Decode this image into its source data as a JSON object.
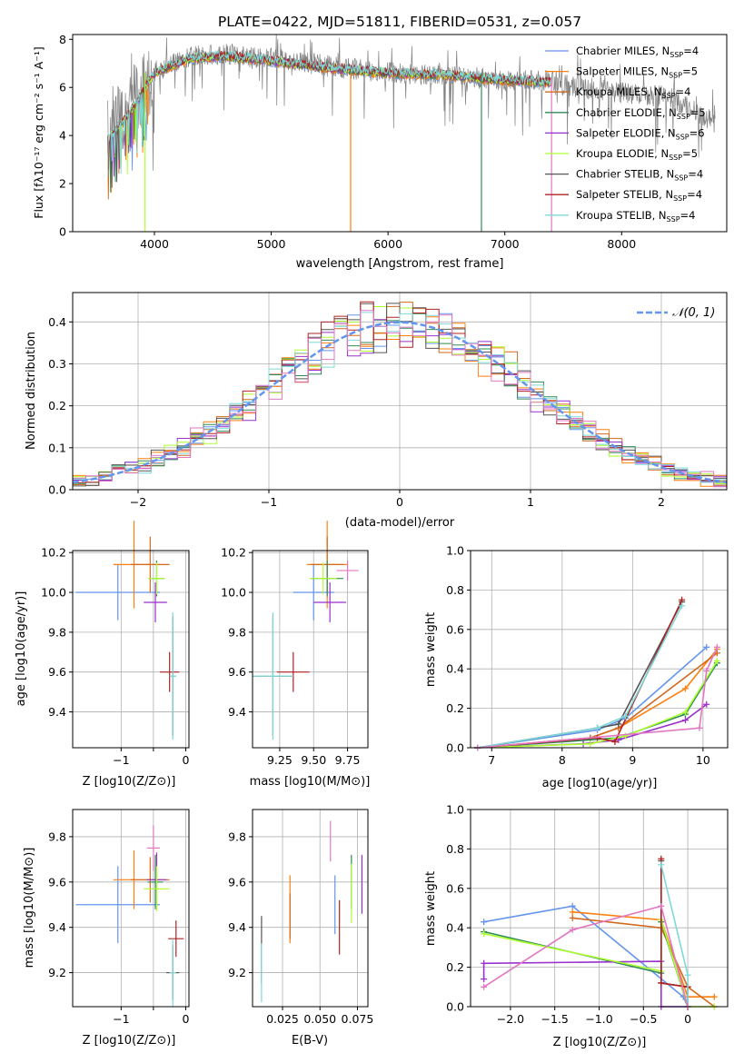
{
  "colors": {
    "chabrier_miles": "#6495ed",
    "salpeter_miles": "#ff7f0e",
    "kroupa_miles": "#d2691e",
    "chabrier_elodie": "#2e8b57",
    "salpeter_elodie": "#9932cc",
    "kroupa_elodie": "#adff2f",
    "chabrier_stelib": "#555555",
    "salpeter_stelib": "#b22222",
    "kroupa_stelib": "#7fd8d8",
    "data": "#808080",
    "extra": "#e377c2"
  },
  "chart_data": [
    {
      "type": "line",
      "title": "PLATE=0422, MJD=51811, FIBERID=0531, z=0.057",
      "xlabel": "wavelength [Angstrom, rest frame]",
      "ylabel": "Flux [fλ10⁻¹⁷ erg cm⁻² s⁻¹ A⁻¹]",
      "xlim": [
        3300,
        8900
      ],
      "ylim": [
        0,
        8.2
      ],
      "xticks": [
        4000,
        5000,
        6000,
        7000,
        8000
      ],
      "yticks": [
        0,
        2,
        4,
        6,
        8
      ],
      "grid": false,
      "legend_position": "top-right",
      "legend": [
        {
          "main": "Chabrier MILES, N",
          "sub": "SSP",
          "tail": "=4",
          "color": "#6495ed"
        },
        {
          "main": "Salpeter MILES, N",
          "sub": "SSP",
          "tail": "=5",
          "color": "#ff7f0e"
        },
        {
          "main": "Kroupa MILES, N",
          "sub": "SSP",
          "tail": "=4",
          "color": "#d2691e"
        },
        {
          "main": "Chabrier ELODIE, N",
          "sub": "SSP",
          "tail": "=5",
          "color": "#2e8b57"
        },
        {
          "main": "Salpeter ELODIE, N",
          "sub": "SSP",
          "tail": "=6",
          "color": "#9932cc"
        },
        {
          "main": "Kroupa ELODIE, N",
          "sub": "SSP",
          "tail": "=5",
          "color": "#adff2f"
        },
        {
          "main": "Chabrier STELIB, N",
          "sub": "SSP",
          "tail": "=4",
          "color": "#555555"
        },
        {
          "main": "Salpeter STELIB, N",
          "sub": "SSP",
          "tail": "=4",
          "color": "#b22222"
        },
        {
          "main": "Kroupa STELIB, N",
          "sub": "SSP",
          "tail": "=4",
          "color": "#7fd8d8"
        }
      ],
      "data_envelope": {
        "x": [
          3600,
          3800,
          4000,
          4300,
          4600,
          5000,
          5500,
          6000,
          6500,
          7000,
          7400,
          7500,
          7800,
          8000,
          8400,
          8800
        ],
        "y": [
          4.2,
          5.4,
          6.6,
          7.3,
          7.4,
          7.2,
          6.9,
          6.6,
          6.5,
          6.3,
          6.3,
          6.1,
          5.9,
          5.8,
          5.6,
          4.5
        ]
      },
      "model_envelope": {
        "x": [
          3600,
          3800,
          4000,
          4300,
          4600,
          5000,
          5500,
          6000,
          6500,
          7000,
          7400
        ],
        "y": [
          3.8,
          5.0,
          6.6,
          7.2,
          7.3,
          7.1,
          6.8,
          6.6,
          6.5,
          6.3,
          6.2
        ]
      }
    },
    {
      "type": "line",
      "xlabel": "(data-model)/error",
      "ylabel": "Normed distribution",
      "xlim": [
        -2.5,
        2.5
      ],
      "ylim": [
        0,
        0.47
      ],
      "xticks": [
        -2,
        -1,
        0,
        1,
        2
      ],
      "yticks": [
        0.0,
        0.1,
        0.2,
        0.3,
        0.4
      ],
      "grid": true,
      "legend_position": "top-right",
      "legend_label": "𝒩(0, 1)",
      "normal_curve": {
        "mean": 0,
        "sigma": 1
      },
      "histogram_bins": {
        "start": -2.5,
        "width": 0.1,
        "count": 50
      }
    },
    {
      "type": "scatter",
      "xlabel": "Z [log10(Z/Z⊙)]",
      "ylabel": "age  [log10(age/yr)]",
      "xlim": [
        -1.75,
        0.05
      ],
      "ylim": [
        9.22,
        10.21
      ],
      "xticks": [
        -1,
        -0.5,
        0
      ],
      "xtick_labels": [
        "−1",
        "",
        "0"
      ],
      "yticks": [
        9.4,
        9.6,
        9.8,
        10.0,
        10.2
      ],
      "grid": true,
      "points": [
        {
          "name": "Chabrier MILES",
          "x": -1.05,
          "y": 10.0,
          "xerr": 0.65,
          "yerr": 0.14
        },
        {
          "name": "Salpeter MILES",
          "x": -0.8,
          "y": 10.14,
          "xerr": 0.32,
          "yerr": 0.22
        },
        {
          "name": "Kroupa MILES",
          "x": -0.55,
          "y": 10.14,
          "xerr": 0.3,
          "yerr": 0.14
        },
        {
          "name": "Chabrier ELODIE",
          "x": -0.45,
          "y": 10.07,
          "xerr": 0.12,
          "yerr": 0.09
        },
        {
          "name": "Salpeter ELODIE",
          "x": -0.47,
          "y": 9.95,
          "xerr": 0.18,
          "yerr": 0.1
        },
        {
          "name": "Kroupa ELODIE",
          "x": -0.45,
          "y": 10.07,
          "xerr": 0.13,
          "yerr": 0.08
        },
        {
          "name": "Chabrier STELIB",
          "x": -0.2,
          "y": 9.58,
          "xerr": 0.05,
          "yerr": 0.3
        },
        {
          "name": "Salpeter STELIB",
          "x": -0.25,
          "y": 9.6,
          "xerr": 0.15,
          "yerr": 0.1
        },
        {
          "name": "Kroupa STELIB",
          "x": -0.2,
          "y": 9.58,
          "xerr": 0.05,
          "yerr": 0.32
        }
      ]
    },
    {
      "type": "scatter",
      "xlabel": "mass [log10(M/M⊙)]",
      "ylabel": "",
      "xlim": [
        9.05,
        9.9
      ],
      "ylim": [
        9.22,
        10.21
      ],
      "xticks": [
        9.25,
        9.5,
        9.75
      ],
      "yticks": [
        9.4,
        9.6,
        9.8,
        10.0,
        10.2
      ],
      "grid": true,
      "points": [
        {
          "name": "Chabrier MILES",
          "x": 9.5,
          "y": 10.0,
          "xerr": 0.15,
          "yerr": 0.14
        },
        {
          "name": "Salpeter MILES",
          "x": 9.6,
          "y": 10.14,
          "xerr": 0.15,
          "yerr": 0.22
        },
        {
          "name": "Kroupa MILES",
          "x": 9.6,
          "y": 10.14,
          "xerr": 0.12,
          "yerr": 0.14
        },
        {
          "name": "Chabrier ELODIE",
          "x": 9.6,
          "y": 10.07,
          "xerr": 0.12,
          "yerr": 0.09
        },
        {
          "name": "Salpeter ELODIE",
          "x": 9.62,
          "y": 9.95,
          "xerr": 0.12,
          "yerr": 0.1
        },
        {
          "name": "Kroupa ELODIE",
          "x": 9.57,
          "y": 10.07,
          "xerr": 0.1,
          "yerr": 0.08
        },
        {
          "name": "Chabrier STELIB",
          "x": 9.2,
          "y": 9.58,
          "xerr": 0.15,
          "yerr": 0.3
        },
        {
          "name": "Salpeter STELIB",
          "x": 9.35,
          "y": 9.6,
          "xerr": 0.12,
          "yerr": 0.1
        },
        {
          "name": "Kroupa STELIB",
          "x": 9.2,
          "y": 9.58,
          "xerr": 0.15,
          "yerr": 0.32
        },
        {
          "name": "extra",
          "x": 9.75,
          "y": 10.11,
          "xerr": 0.08,
          "yerr": 0.05
        }
      ]
    },
    {
      "type": "line",
      "xlabel": "age  [log10(age/yr)]",
      "ylabel": "mass weight",
      "xlim": [
        6.7,
        10.35
      ],
      "ylim": [
        0,
        1.0
      ],
      "xticks": [
        7,
        8,
        9,
        10
      ],
      "yticks": [
        0.0,
        0.2,
        0.4,
        0.6,
        0.8,
        1.0
      ],
      "grid": true,
      "series": [
        {
          "key": "chabrier_miles",
          "x": [
            6.8,
            8.5,
            8.9,
            10.05
          ],
          "y": [
            0.0,
            0.09,
            0.15,
            0.51
          ]
        },
        {
          "key": "salpeter_miles",
          "x": [
            6.8,
            8.4,
            8.8,
            9.75,
            10.2
          ],
          "y": [
            0.0,
            0.05,
            0.1,
            0.3,
            0.5
          ]
        },
        {
          "key": "kroupa_miles",
          "x": [
            6.8,
            8.4,
            8.8,
            10.2
          ],
          "y": [
            0.0,
            0.05,
            0.1,
            0.48
          ]
        },
        {
          "key": "chabrier_elodie",
          "x": [
            6.8,
            8.4,
            8.8,
            9.75,
            10.2
          ],
          "y": [
            0.0,
            0.04,
            0.05,
            0.17,
            0.43
          ]
        },
        {
          "key": "salpeter_elodie",
          "x": [
            6.8,
            8.3,
            8.8,
            9.75,
            10.05
          ],
          "y": [
            0.0,
            0.02,
            0.04,
            0.14,
            0.22
          ]
        },
        {
          "key": "kroupa_elodie",
          "x": [
            6.8,
            8.4,
            8.9,
            9.75,
            10.2
          ],
          "y": [
            0.0,
            0.02,
            0.06,
            0.18,
            0.44
          ]
        },
        {
          "key": "chabrier_stelib",
          "x": [
            6.8,
            8.5,
            8.8,
            9.7
          ],
          "y": [
            0.0,
            0.1,
            0.12,
            0.74
          ]
        },
        {
          "key": "salpeter_stelib",
          "x": [
            6.8,
            8.5,
            8.75,
            9.7
          ],
          "y": [
            0.0,
            0.05,
            0.03,
            0.75
          ]
        },
        {
          "key": "kroupa_stelib",
          "x": [
            6.8,
            8.5,
            8.9,
            9.7
          ],
          "y": [
            0.0,
            0.1,
            0.16,
            0.72
          ]
        },
        {
          "key": "extra",
          "x": [
            6.8,
            9.95,
            10.05,
            10.2
          ],
          "y": [
            0.0,
            0.1,
            0.39,
            0.51
          ]
        }
      ]
    },
    {
      "type": "scatter",
      "xlabel": "Z [log10(Z/Z⊙)]",
      "ylabel": "mass [log10(M/M⊙)]",
      "xlim": [
        -1.75,
        0.05
      ],
      "ylim": [
        9.05,
        9.92
      ],
      "xticks": [
        -1,
        -0.5,
        0
      ],
      "xtick_labels": [
        "−1",
        "",
        "0"
      ],
      "yticks": [
        9.2,
        9.4,
        9.6,
        9.8
      ],
      "grid": true,
      "points": [
        {
          "name": "Chabrier MILES",
          "x": -1.05,
          "y": 9.5,
          "xerr": 0.65,
          "yerr": 0.17
        },
        {
          "name": "Salpeter MILES",
          "x": -0.8,
          "y": 9.61,
          "xerr": 0.32,
          "yerr": 0.13
        },
        {
          "name": "Kroupa MILES",
          "x": -0.55,
          "y": 9.61,
          "xerr": 0.3,
          "yerr": 0.1
        },
        {
          "name": "Chabrier ELODIE",
          "x": -0.47,
          "y": 9.6,
          "xerr": 0.12,
          "yerr": 0.12
        },
        {
          "name": "Salpeter ELODIE",
          "x": -0.45,
          "y": 9.61,
          "xerr": 0.15,
          "yerr": 0.12
        },
        {
          "name": "Kroupa ELODIE",
          "x": -0.45,
          "y": 9.57,
          "xerr": 0.2,
          "yerr": 0.1
        },
        {
          "name": "Chabrier STELIB",
          "x": -0.2,
          "y": 9.2,
          "xerr": 0.1,
          "yerr": 0.12
        },
        {
          "name": "Salpeter STELIB",
          "x": -0.15,
          "y": 9.35,
          "xerr": 0.12,
          "yerr": 0.08
        },
        {
          "name": "Kroupa STELIB",
          "x": -0.2,
          "y": 9.2,
          "xerr": 0.05,
          "yerr": 0.15
        },
        {
          "name": "extra",
          "x": -0.5,
          "y": 9.75,
          "xerr": 0.1,
          "yerr": 0.1
        }
      ]
    },
    {
      "type": "scatter",
      "xlabel": "E(B-V)",
      "ylabel": "",
      "xlim": [
        0.005,
        0.082
      ],
      "ylim": [
        9.05,
        9.92
      ],
      "xticks": [
        0.025,
        0.05,
        0.075
      ],
      "yticks": [
        9.2,
        9.4,
        9.6,
        9.8
      ],
      "grid": true,
      "points": [
        {
          "name": "Chabrier MILES",
          "x": 0.06,
          "y": 9.5,
          "xerr": 0,
          "yerr": 0.13
        },
        {
          "name": "Salpeter MILES",
          "x": 0.03,
          "y": 9.48,
          "xerr": 0,
          "yerr": 0.15
        },
        {
          "name": "Kroupa MILES",
          "x": 0.03,
          "y": 9.45,
          "xerr": 0,
          "yerr": 0.1
        },
        {
          "name": "Chabrier ELODIE",
          "x": 0.071,
          "y": 9.6,
          "xerr": 0,
          "yerr": 0.12
        },
        {
          "name": "Salpeter ELODIE",
          "x": 0.078,
          "y": 9.59,
          "xerr": 0,
          "yerr": 0.13
        },
        {
          "name": "Kroupa ELODIE",
          "x": 0.071,
          "y": 9.55,
          "xerr": 0,
          "yerr": 0.13
        },
        {
          "name": "Chabrier STELIB",
          "x": 0.011,
          "y": 9.3,
          "xerr": 0,
          "yerr": 0.15
        },
        {
          "name": "Salpeter STELIB",
          "x": 0.063,
          "y": 9.4,
          "xerr": 0,
          "yerr": 0.12
        },
        {
          "name": "Kroupa STELIB",
          "x": 0.011,
          "y": 9.2,
          "xerr": 0,
          "yerr": 0.13
        },
        {
          "name": "extra",
          "x": 0.057,
          "y": 9.78,
          "xerr": 0,
          "yerr": 0.09
        }
      ]
    },
    {
      "type": "line",
      "xlabel": "Z [log10(Z/Z⊙)]",
      "ylabel": "mass weight",
      "xlim": [
        -2.45,
        0.45
      ],
      "ylim": [
        0,
        1.0
      ],
      "xticks": [
        -2.0,
        -1.5,
        -1.0,
        -0.5,
        0.0
      ],
      "yticks": [
        0.0,
        0.2,
        0.4,
        0.6,
        0.8,
        1.0
      ],
      "grid": true,
      "series": [
        {
          "key": "chabrier_miles",
          "x": [
            -2.3,
            -1.3,
            -0.05,
            0.0
          ],
          "y": [
            0.43,
            0.51,
            0.05,
            0.0
          ]
        },
        {
          "key": "salpeter_miles",
          "x": [
            -1.3,
            -0.3,
            0.0,
            0.3
          ],
          "y": [
            0.48,
            0.44,
            0.05,
            0.05
          ]
        },
        {
          "key": "kroupa_miles",
          "x": [
            -1.3,
            -0.3,
            0.0,
            0.3
          ],
          "y": [
            0.45,
            0.4,
            0.1,
            0.0
          ]
        },
        {
          "key": "chabrier_elodie",
          "x": [
            -2.3,
            -0.3,
            -0.3,
            0.0
          ],
          "y": [
            0.38,
            0.17,
            0.43,
            0.0
          ]
        },
        {
          "key": "salpeter_elodie",
          "x": [
            -2.3,
            -2.3,
            -0.3,
            -0.3,
            0.0
          ],
          "y": [
            0.14,
            0.22,
            0.23,
            0.0,
            0.0
          ]
        },
        {
          "key": "kroupa_elodie",
          "x": [
            -2.3,
            -0.3,
            -0.3,
            0.0,
            0.3
          ],
          "y": [
            0.37,
            0.18,
            0.44,
            0.0,
            0.0
          ]
        },
        {
          "key": "chabrier_stelib",
          "x": [
            -0.3,
            -0.3,
            0.0,
            0.0
          ],
          "y": [
            0.74,
            0.12,
            0.1,
            0.0
          ]
        },
        {
          "key": "salpeter_stelib",
          "x": [
            -0.3,
            -0.3,
            0.0
          ],
          "y": [
            0.75,
            0.12,
            0.1
          ]
        },
        {
          "key": "kroupa_stelib",
          "x": [
            -0.3,
            0.0,
            0.0
          ],
          "y": [
            0.72,
            0.16,
            0.0
          ]
        },
        {
          "key": "extra",
          "x": [
            -2.3,
            -1.3,
            -0.3,
            0.0
          ],
          "y": [
            0.1,
            0.39,
            0.51,
            0.0
          ]
        }
      ]
    }
  ]
}
